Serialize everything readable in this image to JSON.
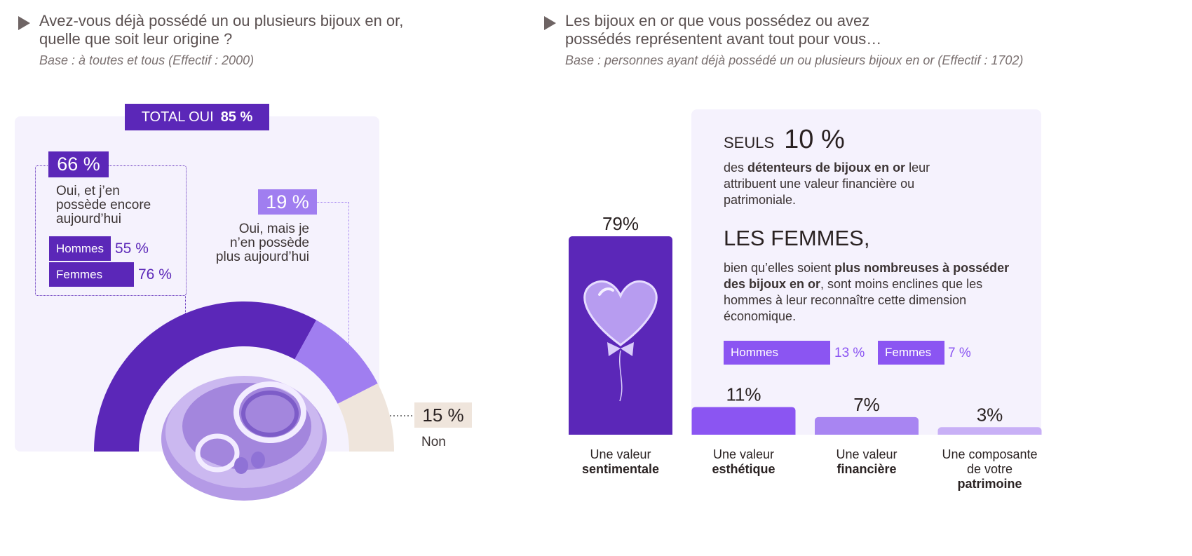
{
  "left": {
    "question_l1": "Avez-vous déjà possédé un ou plusieurs bijoux en or,",
    "question_l2": "quelle que soit leur origine ?",
    "base": "Base : à toutes et tous (Effectif : 2000)",
    "total_label": "TOTAL OUI",
    "total_value": "85 %",
    "owns_pct": "66 %",
    "owns_l1": "Oui, et j’en",
    "owns_l2": "possède encore",
    "owns_l3": "aujourd’hui",
    "men_label": "Hommes",
    "men_value": "55 %",
    "women_label": "Femmes",
    "women_value": "76 %",
    "former_pct": "19 %",
    "former_l1": "Oui, mais je",
    "former_l2": "n’en possède",
    "former_l3": "plus aujourd’hui",
    "no_pct": "15 %",
    "no_label": "Non"
  },
  "right": {
    "question_l1": "Les bijoux en or que vous possédez ou avez",
    "question_l2": "possédés représentent avant tout pour vous…",
    "base": "Base : personnes ayant déjà possédé un ou plusieurs bijoux en or (Effectif : 1702)",
    "seuls_label": "SEULS",
    "seuls_value": "10 %",
    "info1_a": "des ",
    "info1_b": "détenteurs de bijoux en or",
    "info1_c": " leur",
    "info1_l2": "attribuent une valeur financière ou",
    "info1_l3": "patrimoniale.",
    "femmes_heading": "LES FEMMES,",
    "info2_a": "bien qu’elles soient ",
    "info2_b": "plus nombreuses à posséder",
    "info2_c": "des bijoux en or",
    "info2_d": ", sont moins enclines que les",
    "info2_l3": "hommes à leur reconnaître cette dimension",
    "info2_l4": "économique.",
    "men_label": "Hommes",
    "men_value": "13 %",
    "women_label": "Femmes",
    "women_value": "7 %"
  },
  "chart_data": [
    {
      "type": "pie",
      "style": "semi-donut",
      "title": "Avez-vous déjà possédé un ou plusieurs bijoux en or, quelle que soit leur origine ?",
      "categories": [
        "Oui, et j’en possède encore aujourd’hui",
        "Oui, mais je n’en possède plus aujourd’hui",
        "Non"
      ],
      "values": [
        66,
        19,
        15
      ],
      "colors": [
        "#5b27b8",
        "#a07ef0",
        "#efe5dc"
      ],
      "total_yes": 85,
      "breakdown_owns": {
        "Hommes": 55,
        "Femmes": 76
      }
    },
    {
      "type": "bar",
      "title": "Les bijoux en or que vous possédez ou avez possédés représentent avant tout pour vous…",
      "categories": [
        "Une valeur sentimentale",
        "Une valeur esthétique",
        "Une valeur financière",
        "Une composante de votre patrimoine"
      ],
      "values": [
        79,
        11,
        7,
        3
      ],
      "labels": [
        "79%",
        "11%",
        "7%",
        "3%"
      ],
      "colors": [
        "#5b27b8",
        "#8b55f2",
        "#a885f2",
        "#c8b0f6"
      ],
      "ylim": [
        0,
        79
      ],
      "cat_l1": [
        "Une valeur",
        "Une valeur",
        "Une valeur",
        "Une composante"
      ],
      "cat_l2": [
        "sentimentale",
        "esthétique",
        "financière",
        "de votre"
      ],
      "cat_l3": [
        "",
        "",
        "",
        "patrimoine"
      ]
    }
  ]
}
